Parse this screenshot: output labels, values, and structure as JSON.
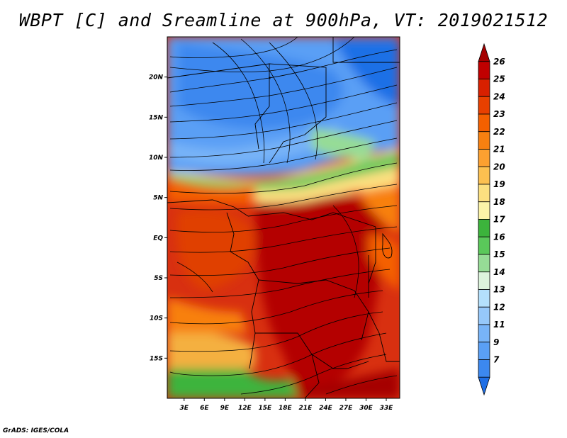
{
  "title": "WBPT [C] and Sreamline at 900hPa, VT: 2019021512",
  "credit": "GrADS: IGES/COLA",
  "map": {
    "lat_labels": [
      "20N",
      "15N",
      "10N",
      "5N",
      "EQ",
      "5S",
      "10S",
      "15S"
    ],
    "lat_values": [
      20,
      15,
      10,
      5,
      0,
      -5,
      -10,
      -15
    ],
    "lon_labels": [
      "3E",
      "6E",
      "9E",
      "12E",
      "15E",
      "18E",
      "21E",
      "24E",
      "27E",
      "30E",
      "33E"
    ],
    "lon_values": [
      3,
      6,
      9,
      12,
      15,
      18,
      21,
      24,
      27,
      30,
      33
    ],
    "lat_range": [
      -20,
      25
    ],
    "lon_range": [
      0.5,
      35
    ]
  },
  "colorbar": {
    "labels": [
      "26",
      "25",
      "24",
      "23",
      "22",
      "21",
      "20",
      "19",
      "18",
      "17",
      "16",
      "15",
      "14",
      "13",
      "12",
      "11",
      "9",
      "7"
    ],
    "colors": [
      "#a50000",
      "#c00000",
      "#d82000",
      "#e84000",
      "#f46000",
      "#f88010",
      "#fca030",
      "#fcc050",
      "#fce080",
      "#fcf4a8",
      "#3cb43c",
      "#5ac85a",
      "#96dc96",
      "#dcf4dc",
      "#b4e0fc",
      "#96c8fa",
      "#78b4f8",
      "#5a9ff5",
      "#3c88ef",
      "#1f6fe6"
    ]
  }
}
